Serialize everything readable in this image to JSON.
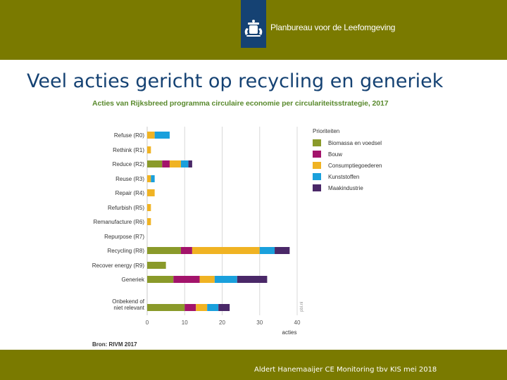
{
  "header": {
    "org_name": "Planbureau voor de Leefomgeving",
    "logo_icon": "dutch-coat-of-arms-icon"
  },
  "slide": {
    "title": "Veel acties gericht op recycling en generiek",
    "source": "Bron: RIVM 2017",
    "footer": "Aldert Hanemaaijer CE Monitoring tbv KIS mei 2018"
  },
  "colors": {
    "bar_brand": "#7a7a00",
    "logo_blue": "#154273",
    "title_blue": "#154273",
    "chart_title_green": "#5a8a2e"
  },
  "chart_data": {
    "type": "bar",
    "orientation": "horizontal",
    "stacked": true,
    "title": "Acties van Rijksbreed programma circulaire economie per circulariteitsstrategie, 2017",
    "xlabel": "acties",
    "ylabel": "",
    "xlim": [
      0,
      40
    ],
    "xticks": [
      "0",
      "10",
      "20",
      "30",
      "40"
    ],
    "grid": true,
    "watermark": "pbl.nl",
    "legend": {
      "title": "Prioriteiten",
      "position": "right"
    },
    "categories": [
      "Refuse (R0)",
      "Rethink (R1)",
      "Reduce (R2)",
      "Reuse (R3)",
      "Repair (R4)",
      "Refurbish (R5)",
      "Remanufacture (R6)",
      "Repurpose (R7)",
      "Recycling (R8)",
      "Recover energy (R9)",
      "Generiek",
      "Onbekend of niet relevant"
    ],
    "series": [
      {
        "name": "Biomassa en voedsel",
        "color": "#8a9a2a",
        "values": [
          0,
          0,
          4,
          0,
          0,
          0,
          0,
          0,
          9,
          5,
          7,
          10
        ]
      },
      {
        "name": "Bouw",
        "color": "#a3146b",
        "values": [
          0,
          0,
          2,
          0,
          0,
          0,
          0,
          0,
          3,
          0,
          7,
          3
        ]
      },
      {
        "name": "Consumptiegoederen",
        "color": "#f0b323",
        "values": [
          2,
          1,
          3,
          1,
          2,
          1,
          1,
          0,
          18,
          0,
          4,
          3
        ]
      },
      {
        "name": "Kunststoffen",
        "color": "#1aa0dc",
        "values": [
          4,
          0,
          2,
          1,
          0,
          0,
          0,
          0,
          4,
          0,
          6,
          3
        ]
      },
      {
        "name": "Maakindustrie",
        "color": "#4a2868",
        "values": [
          0,
          0,
          1,
          0,
          0,
          0,
          0,
          0,
          4,
          0,
          8,
          3
        ]
      }
    ]
  }
}
